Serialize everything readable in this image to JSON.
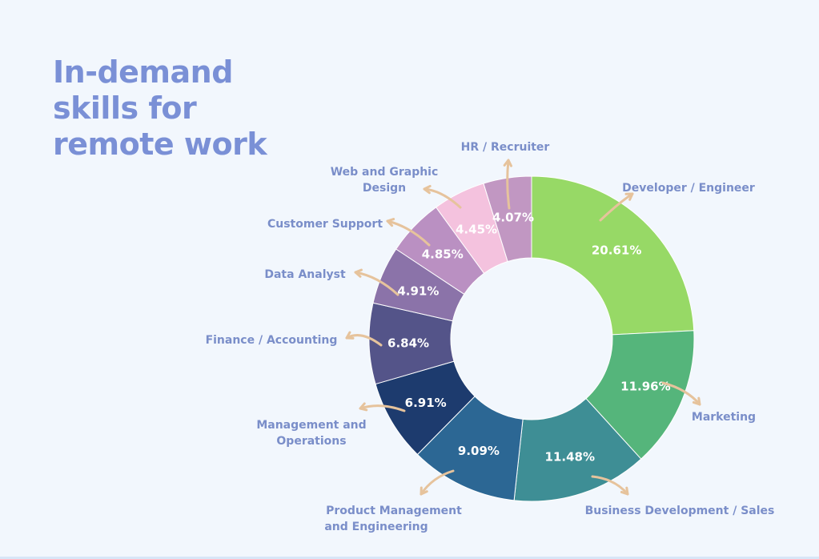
{
  "title_lines": [
    "In-demand",
    "skills for",
    "remote work"
  ],
  "colors": {
    "background": "#f2f7fd",
    "title": "#7a90d6",
    "label": "#7a8ec9",
    "arrow": "#e6c39c",
    "slice_text": "#ffffff"
  },
  "chart_data": {
    "type": "pie",
    "title": "In-demand skills for remote work",
    "donut": true,
    "legend": "none",
    "series": [
      {
        "label": "Developer / Engineer",
        "value": 20.61,
        "display": "20.61%",
        "color": "#97d966"
      },
      {
        "label": "Marketing",
        "value": 11.96,
        "display": "11.96%",
        "color": "#55b57b"
      },
      {
        "label": "Business Development / Sales",
        "value": 11.48,
        "display": "11.48%",
        "color": "#3e8e95"
      },
      {
        "label": "Product Management and Engineering",
        "value": 9.09,
        "display": "9.09%",
        "color": "#2c6794"
      },
      {
        "label": "Management and Operations",
        "value": 6.91,
        "display": "6.91%",
        "color": "#1d3b6e"
      },
      {
        "label": "Finance / Accounting",
        "value": 6.84,
        "display": "6.84%",
        "color": "#545489"
      },
      {
        "label": "Data Analyst",
        "value": 4.91,
        "display": "4.91%",
        "color": "#8b73a9"
      },
      {
        "label": "Customer Support",
        "value": 4.85,
        "display": "4.85%",
        "color": "#ba90c2"
      },
      {
        "label": "Web and Graphic Design",
        "value": 4.45,
        "display": "4.45%",
        "color": "#f4c2de"
      },
      {
        "label": "HR / Recruiter",
        "value": 4.07,
        "display": "4.07%",
        "color": "#c197c2"
      }
    ]
  }
}
